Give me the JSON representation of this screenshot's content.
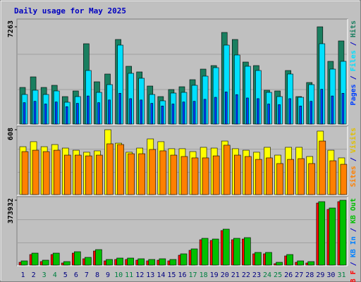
{
  "chart_data": [
    {
      "type": "bar",
      "title": "Daily usage for May 2025",
      "ylim": [
        0,
        7263
      ],
      "yticks": [
        7263
      ],
      "legend_separator": " / ",
      "series": [
        {
          "name": "Pages",
          "color": "#0040ff",
          "values": [
            1600,
            1700,
            1500,
            1650,
            1300,
            1550,
            2100,
            1600,
            1800,
            2300,
            1900,
            1800,
            1550,
            1350,
            1500,
            1650,
            1700,
            1850,
            2000,
            2400,
            2200,
            1950,
            1900,
            1500,
            1450,
            1900,
            1350,
            1700,
            2600,
            2100,
            2300
          ]
        },
        {
          "name": "Files",
          "color": "#00e0ff",
          "values": [
            2211,
            2526,
            2211,
            2474,
            1632,
            2053,
            4000,
            2368,
            2947,
            5895,
            3789,
            3421,
            2211,
            1737,
            2316,
            2368,
            2895,
            3579,
            4211,
            5895,
            5158,
            4316,
            4000,
            2368,
            2053,
            3737,
            2000,
            2947,
            6000,
            4105,
            4684
          ]
        },
        {
          "name": "Hits",
          "color": "#1a7f60",
          "values": [
            2737,
            3526,
            2737,
            2895,
            2053,
            2474,
            6000,
            3158,
            3737,
            6316,
            4316,
            3895,
            2842,
            2053,
            2579,
            2789,
            3316,
            4105,
            4368,
            6842,
            6316,
            4632,
            4368,
            2526,
            2474,
            4000,
            2053,
            3105,
            7263,
            4684,
            6210
          ]
        }
      ]
    },
    {
      "type": "bar",
      "ylim": [
        0,
        608
      ],
      "yticks": [
        608
      ],
      "legend_separator": " / ",
      "series": [
        {
          "name": "Sites",
          "color": "#ff8000",
          "values": [
            403,
            416,
            403,
            416,
            370,
            370,
            363,
            370,
            476,
            469,
            383,
            383,
            423,
            410,
            370,
            357,
            344,
            344,
            363,
            463,
            370,
            357,
            330,
            344,
            291,
            330,
            337,
            291,
            502,
            317,
            284
          ]
        },
        {
          "name": "Visits",
          "color": "#ffff00",
          "values": [
            449,
            496,
            449,
            469,
            436,
            416,
            397,
            410,
            608,
            482,
            397,
            436,
            522,
            496,
            430,
            430,
            403,
            443,
            436,
            502,
            430,
            416,
            397,
            443,
            370,
            443,
            443,
            357,
            595,
            416,
            344
          ]
        }
      ]
    },
    {
      "type": "bar",
      "ylim": [
        0,
        373932
      ],
      "yticks": [
        373932
      ],
      "legend_separator": " / ",
      "categories": [
        "1",
        "2",
        "3",
        "4",
        "5",
        "6",
        "7",
        "8",
        "9",
        "10",
        "11",
        "12",
        "13",
        "14",
        "15",
        "16",
        "17",
        "18",
        "19",
        "20",
        "21",
        "22",
        "23",
        "24",
        "25",
        "26",
        "27",
        "28",
        "29",
        "30",
        "31"
      ],
      "category_colors": [
        "#000080",
        "#000080",
        "#008040",
        "#008040",
        "#000080",
        "#000080",
        "#000080",
        "#000080",
        "#000080",
        "#008040",
        "#008040",
        "#000080",
        "#000080",
        "#000080",
        "#000080",
        "#000080",
        "#008040",
        "#008040",
        "#000080",
        "#000080",
        "#000080",
        "#000080",
        "#000080",
        "#008040",
        "#008040",
        "#000080",
        "#000080",
        "#000080",
        "#000080",
        "#000080",
        "#008040"
      ],
      "series": [
        {
          "name": "KB F",
          "color": "#ff0000",
          "values": [
            16258,
            60968,
            20323,
            60968,
            12194,
            69097,
            36581,
            81290,
            24387,
            32516,
            32516,
            28452,
            24387,
            28452,
            24387,
            56903,
            85355,
            146323,
            142258,
            199161,
            146323,
            150387,
            65032,
            65032,
            8129,
            52839,
            16258,
            12194,
            357677,
            321097,
            365806
          ]
        },
        {
          "name": "KB In",
          "color": "#0080ff",
          "values": [
            0,
            0,
            0,
            0,
            0,
            0,
            0,
            0,
            0,
            0,
            0,
            0,
            0,
            0,
            0,
            0,
            0,
            0,
            0,
            0,
            0,
            0,
            0,
            0,
            0,
            0,
            0,
            0,
            0,
            0,
            0
          ]
        },
        {
          "name": "KB Out",
          "color": "#00c000",
          "values": [
            24387,
            69097,
            28452,
            69097,
            20323,
            77226,
            44710,
            89419,
            32516,
            40645,
            40645,
            36581,
            32516,
            36581,
            32516,
            65032,
            93484,
            154452,
            150387,
            207291,
            154452,
            158516,
            73161,
            73161,
            16258,
            60968,
            24387,
            20323,
            365806,
            329226,
            373932
          ]
        }
      ]
    }
  ]
}
